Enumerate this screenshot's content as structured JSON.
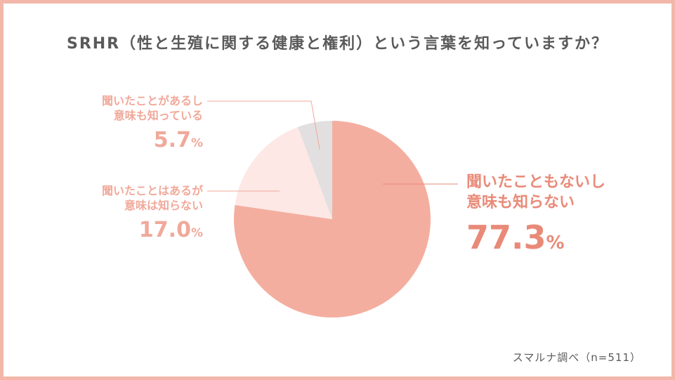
{
  "title": "SRHR（性と生殖に関する健康と権利）という言葉を知っていますか？",
  "source": "スマルナ調べ（n=511）",
  "colors": {
    "frame": "#f2b7a9",
    "slice_main": "#f4ae9f",
    "slice_mid": "#fde8e5",
    "slice_small": "#e2dfe0",
    "label_light": "#f0a99a",
    "label_dark": "#e98a78",
    "title_text": "#5a5a5a"
  },
  "chart_data": {
    "type": "pie",
    "title": "SRHR（性と生殖に関する健康と権利）という言葉を知っていますか？",
    "slices": [
      {
        "label_line1": "聞いたこともないし",
        "label_line2": "意味も知らない",
        "value": 77.3,
        "value_text": "77.3",
        "unit": "%"
      },
      {
        "label_line1": "聞いたことはあるが",
        "label_line2": "意味は知らない",
        "value": 17.0,
        "value_text": "17.0",
        "unit": "%"
      },
      {
        "label_line1": "聞いたことがあるし",
        "label_line2": "意味も知っている",
        "value": 5.7,
        "value_text": "5.7",
        "unit": "%"
      }
    ]
  }
}
